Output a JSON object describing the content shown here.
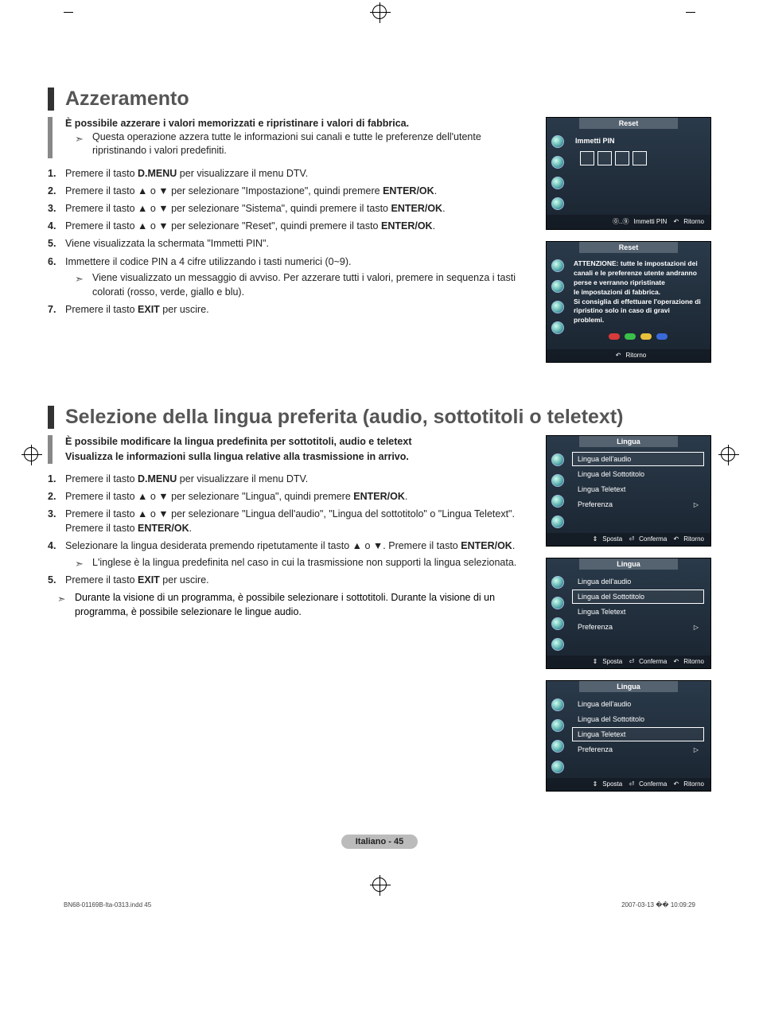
{
  "crop_top_ticks": true,
  "section1": {
    "title": "Azzeramento",
    "intro": "È possibile azzerare i valori memorizzati e ripristinare i valori di fabbrica.",
    "note": "Questa operazione azzera tutte le informazioni sui canali e tutte le preferenze dell'utente ripristinando i valori predefiniti.",
    "steps": {
      "s1a": "Premere il tasto ",
      "s1b": "D.MENU",
      "s1c": " per visualizzare il menu DTV.",
      "s2a": "Premere il tasto ▲ o ▼ per selezionare \"Impostazione\", quindi premere ",
      "s2b": "ENTER/OK",
      "s2c": ".",
      "s3a": "Premere il tasto ▲ o ▼ per selezionare \"Sistema\", quindi premere il tasto ",
      "s3b": "ENTER/OK",
      "s3c": ".",
      "s4a": "Premere il tasto ▲ o ▼ per selezionare \"Reset\", quindi premere il tasto ",
      "s4b": "ENTER/OK",
      "s4c": ".",
      "s5": "Viene visualizzata la schermata \"Immetti PIN\".",
      "s6": "Immettere il codice PIN a 4 cifre utilizzando i tasti numerici (0~9).",
      "s6n": "Viene visualizzato un messaggio di avviso. Per azzerare tutti i valori, premere in sequenza i tasti colorati (rosso, verde, giallo e blu).",
      "s7a": "Premere il tasto ",
      "s7b": "EXIT",
      "s7c": " per uscire."
    }
  },
  "osd1": {
    "title": "Reset",
    "label": "Immetti PIN",
    "hint_pin": "Immetti PIN",
    "hint_ret": "Ritorno"
  },
  "osd2": {
    "title": "Reset",
    "warn_l1": "ATTENZIONE: tutte le impostazioni dei",
    "warn_l2": "canali e le preferenze utente andranno",
    "warn_l3": "perse e verranno ripristinate",
    "warn_l4": "le impostazioni di fabbrica.",
    "warn_l5": "Si consiglia di effettuare l'operazione di",
    "warn_l6": "ripristino solo in caso di gravi problemi.",
    "hint_ret": "Ritorno",
    "dot_colors": [
      "#d93a3a",
      "#3ac04a",
      "#e8c23a",
      "#3a6ad9"
    ]
  },
  "section2": {
    "title": "Selezione della lingua preferita (audio, sottotitoli o teletext)",
    "intro": "È possibile modificare la lingua predefinita per sottotitoli, audio e teletext",
    "intro2": "Visualizza le informazioni sulla lingua relative alla trasmissione in arrivo.",
    "steps": {
      "s1a": "Premere il tasto ",
      "s1b": "D.MENU",
      "s1c": " per visualizzare il menu DTV.",
      "s2a": "Premere il tasto ▲ o ▼ per selezionare \"Lingua\", quindi premere ",
      "s2b": "ENTER/OK",
      "s2c": ".",
      "s3a": "Premere il tasto ▲ o ▼ per selezionare \"Lingua dell'audio\", \"Lingua del sottotitolo\" o \"Lingua Teletext\". Premere il tasto ",
      "s3b": "ENTER/OK",
      "s3c": ".",
      "s4a": "Selezionare la lingua desiderata premendo ripetutamente il tasto ▲ o ▼. Premere il tasto ",
      "s4b": "ENTER/OK",
      "s4c": ".",
      "s4n": "L'inglese è la lingua predefinita nel caso in cui la trasmissione non supporti la lingua selezionata.",
      "s5a": "Premere il tasto ",
      "s5b": "EXIT",
      "s5c": " per uscire."
    },
    "trail": "Durante la visione di un programma, è possibile selezionare i sottotitoli. Durante la visione di un programma, è possibile selezionare le lingue audio."
  },
  "osd_lang": {
    "title": "Lingua",
    "r1": "Lingua dell'audio",
    "r2": "Lingua del Sottotitolo",
    "r3": "Lingua Teletext",
    "r4": "Preferenza",
    "hint_move": "Sposta",
    "hint_ok": "Conferma",
    "hint_ret": "Ritorno"
  },
  "footer": "Italiano - 45",
  "meta_left": "BN68-01169B-Ita-0313.indd   45",
  "meta_right": "2007-03-13   �� 10:09:29"
}
